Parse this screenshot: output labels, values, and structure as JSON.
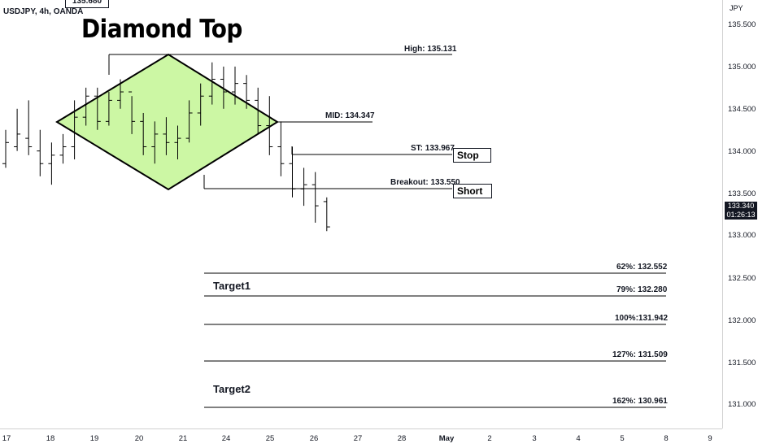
{
  "header": {
    "symbol_label": "USDJPY, 4h, OANDA",
    "top_price_box": "135.680"
  },
  "annotation": {
    "title": "Diamond Top",
    "diamond_fill": "#ccf7a4",
    "levels": {
      "high": "High: 135.131",
      "mid": "MID: 134.347",
      "stop_level": "ST: 133.967",
      "breakout": "Breakout: 133.550"
    },
    "tags": {
      "stop": "Stop",
      "short": "Short"
    },
    "targets": {
      "fib62": "62%: 132.552",
      "fib79": "79%: 132.280",
      "fib100": "100%:131.942",
      "fib127": "127%: 131.509",
      "fib162": "162%: 130.961",
      "target1": "Target1",
      "target2": "Target2"
    }
  },
  "price_axis": {
    "unit": "JPY",
    "ticks": [
      "135.500",
      "135.000",
      "134.500",
      "134.000",
      "133.500",
      "133.000",
      "132.500",
      "132.000",
      "131.500",
      "131.000"
    ],
    "current_price": "133.340",
    "countdown": "01:26:13"
  },
  "time_axis": {
    "ticks": [
      "17",
      "18",
      "19",
      "20",
      "21",
      "24",
      "25",
      "26",
      "27",
      "28",
      "May",
      "2",
      "3",
      "4",
      "5",
      "8",
      "9"
    ]
  },
  "chart_data": {
    "type": "ohlc",
    "symbol": "USDJPY",
    "timeframe": "4h",
    "ylim": [
      130.7,
      135.85
    ],
    "bars": [
      [
        133.85,
        134.25,
        133.8,
        134.1
      ],
      [
        134.05,
        134.5,
        134.0,
        134.2
      ],
      [
        134.15,
        134.6,
        133.95,
        134.05
      ],
      [
        134.0,
        134.25,
        133.7,
        133.85
      ],
      [
        133.85,
        134.1,
        133.6,
        133.95
      ],
      [
        133.95,
        134.2,
        133.85,
        134.05
      ],
      [
        134.05,
        134.6,
        133.9,
        134.4
      ],
      [
        134.4,
        134.75,
        134.3,
        134.65
      ],
      [
        134.65,
        134.75,
        134.25,
        134.35
      ],
      [
        134.35,
        134.7,
        134.3,
        134.6
      ],
      [
        134.6,
        134.85,
        134.5,
        134.7
      ],
      [
        134.7,
        134.65,
        134.2,
        134.35
      ],
      [
        134.35,
        134.45,
        133.95,
        134.05
      ],
      [
        134.05,
        134.35,
        133.85,
        134.2
      ],
      [
        134.2,
        134.4,
        133.95,
        134.1
      ],
      [
        134.1,
        134.3,
        133.9,
        134.15
      ],
      [
        134.15,
        134.6,
        134.1,
        134.45
      ],
      [
        134.45,
        134.8,
        134.3,
        134.65
      ],
      [
        134.65,
        135.05,
        134.55,
        134.85
      ],
      [
        134.85,
        135.0,
        134.5,
        134.7
      ],
      [
        134.7,
        135.0,
        134.55,
        134.8
      ],
      [
        134.8,
        134.9,
        134.5,
        134.6
      ],
      [
        134.6,
        134.75,
        134.2,
        134.3
      ],
      [
        134.3,
        134.65,
        133.95,
        134.05
      ],
      [
        134.05,
        134.35,
        133.7,
        133.85
      ],
      [
        133.85,
        134.05,
        133.45,
        133.55
      ],
      [
        133.55,
        133.8,
        133.35,
        133.6
      ],
      [
        133.6,
        133.75,
        133.15,
        133.35
      ],
      [
        133.4,
        133.45,
        133.05,
        133.1
      ]
    ]
  }
}
